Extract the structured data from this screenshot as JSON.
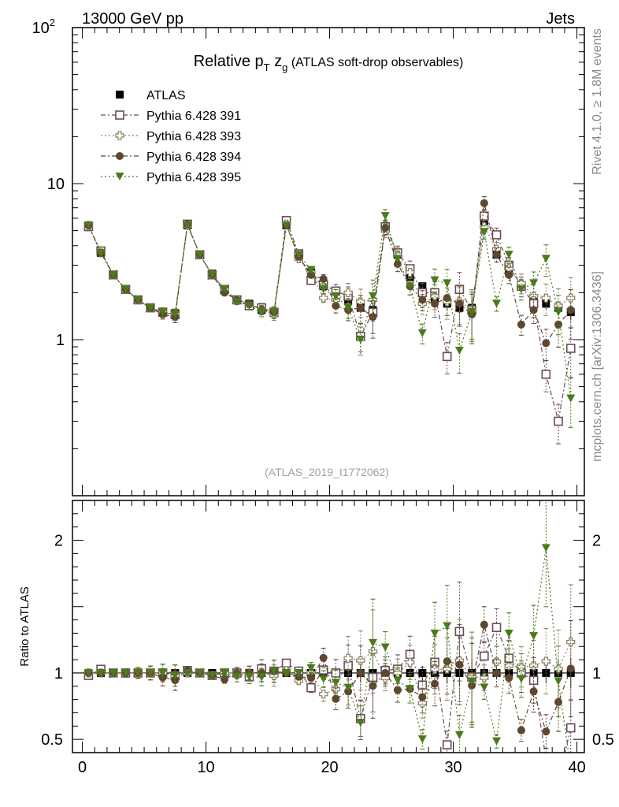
{
  "header": {
    "left": "13000 GeV pp",
    "right": "Jets",
    "side_top": "Rivet 4.1.0, ≥ 1.8M events",
    "side_bottom": "mcplots.cern.ch [arXiv:1306.3436]",
    "analysis_id": "(ATLAS_2019_I1772062)"
  },
  "colors": {
    "atlas": "#000000",
    "p391": "#6b4a5a",
    "p393": "#8c8463",
    "p394": "#5e4630",
    "p395": "#4a7a1a",
    "axis": "#000000",
    "side_text": "#8a8a8a"
  },
  "chart_data": {
    "type": "scatter",
    "title": {
      "main": "Relative p",
      "sub_t": "T",
      "z": " z",
      "sub_g": "g",
      "rest": " (ATLAS soft-drop observables)"
    },
    "xlabel": "",
    "ylabel_ratio": "Ratio to ATLAS",
    "xlim": [
      -0.8,
      40.6
    ],
    "ylim_main": [
      0.1,
      100
    ],
    "ylim_ratio": [
      0.4,
      2.3
    ],
    "main_yscale": "log",
    "x_ticks": [
      "0",
      "10",
      "20",
      "30",
      "40"
    ],
    "main_y_ticks": [
      {
        "v": 1,
        "label": "1"
      },
      {
        "v": 10,
        "label": "10"
      },
      {
        "v": 100,
        "label": "10",
        "sup": "2"
      }
    ],
    "ratio_y_ticks": [
      {
        "v": 0.5,
        "label": "0.5"
      },
      {
        "v": 1,
        "label": "1"
      },
      {
        "v": 2,
        "label": "2"
      }
    ],
    "x": [
      0.5,
      1.5,
      2.5,
      3.5,
      4.5,
      5.5,
      6.5,
      7.5,
      8.5,
      9.5,
      10.5,
      11.5,
      12.5,
      13.5,
      14.5,
      15.5,
      16.5,
      17.5,
      18.5,
      19.5,
      20.5,
      21.5,
      22.5,
      23.5,
      24.5,
      25.5,
      26.5,
      27.5,
      28.5,
      29.5,
      30.5,
      31.5,
      32.5,
      33.5,
      34.5,
      35.5,
      36.5,
      37.5,
      38.5,
      39.5
    ],
    "series": [
      {
        "name": "ATLAS",
        "key": "atlas",
        "marker": "filled-square",
        "values": [
          5.4,
          3.6,
          2.6,
          2.1,
          1.8,
          1.6,
          1.5,
          1.48,
          5.4,
          3.5,
          2.65,
          2.1,
          1.8,
          1.7,
          1.55,
          1.48,
          5.4,
          3.5,
          2.7,
          2.2,
          2.05,
          1.8,
          1.6,
          1.55,
          5.2,
          3.5,
          2.5,
          2.2,
          1.85,
          1.7,
          1.6,
          1.6,
          5.5,
          3.5,
          2.7,
          2.2,
          1.8,
          1.7,
          1.6,
          1.5
        ]
      },
      {
        "name": "Pythia 6.428 391",
        "key": "p391",
        "marker": "open-square",
        "linestyle": "dashdot",
        "values": [
          5.3,
          3.7,
          2.6,
          2.1,
          1.8,
          1.6,
          1.5,
          1.45,
          5.5,
          3.5,
          2.6,
          2.1,
          1.8,
          1.65,
          1.6,
          1.5,
          5.8,
          3.55,
          2.4,
          2.25,
          2.05,
          1.9,
          1.05,
          1.5,
          5.3,
          3.6,
          2.85,
          2.0,
          2.0,
          0.78,
          2.1,
          1.55,
          6.2,
          4.7,
          3.0,
          2.2,
          1.7,
          0.6,
          0.3,
          0.88
        ]
      },
      {
        "name": "Pythia 6.428 393",
        "key": "p393",
        "marker": "open-cross",
        "linestyle": "dotted",
        "values": [
          5.4,
          3.6,
          2.6,
          2.1,
          1.8,
          1.6,
          1.5,
          1.45,
          5.4,
          3.5,
          2.6,
          2.1,
          1.8,
          1.7,
          1.55,
          1.45,
          5.5,
          3.3,
          2.7,
          1.85,
          1.8,
          2.0,
          1.75,
          1.8,
          5.0,
          3.5,
          2.7,
          1.7,
          1.9,
          1.75,
          1.75,
          1.55,
          5.3,
          3.8,
          2.85,
          2.3,
          1.9,
          1.85,
          1.65,
          1.85
        ]
      },
      {
        "name": "Pythia 6.428 394",
        "key": "p394",
        "marker": "filled-circle",
        "linestyle": "dashdot",
        "values": [
          5.4,
          3.6,
          2.6,
          2.1,
          1.8,
          1.6,
          1.45,
          1.4,
          5.5,
          3.5,
          2.6,
          2.0,
          1.8,
          1.7,
          1.55,
          1.5,
          5.4,
          3.4,
          2.6,
          2.45,
          1.65,
          1.55,
          1.6,
          1.4,
          5.2,
          3.05,
          2.2,
          1.8,
          1.7,
          1.85,
          1.7,
          1.45,
          7.5,
          3.5,
          2.6,
          1.25,
          1.55,
          0.95,
          1.25,
          1.55
        ]
      },
      {
        "name": "Pythia 6.428 395",
        "key": "p395",
        "marker": "filled-triangle-down",
        "linestyle": "dotted",
        "values": [
          5.4,
          3.6,
          2.6,
          2.1,
          1.8,
          1.6,
          1.5,
          1.45,
          5.4,
          3.5,
          2.6,
          2.1,
          1.75,
          1.65,
          1.5,
          1.5,
          5.4,
          3.5,
          2.8,
          2.1,
          1.9,
          1.6,
          1.0,
          1.9,
          6.2,
          3.3,
          2.2,
          1.1,
          2.4,
          2.3,
          0.85,
          1.5,
          4.9,
          1.7,
          3.5,
          2.1,
          2.3,
          3.3,
          1.5,
          0.42
        ]
      }
    ],
    "legend_position": "top-left"
  }
}
